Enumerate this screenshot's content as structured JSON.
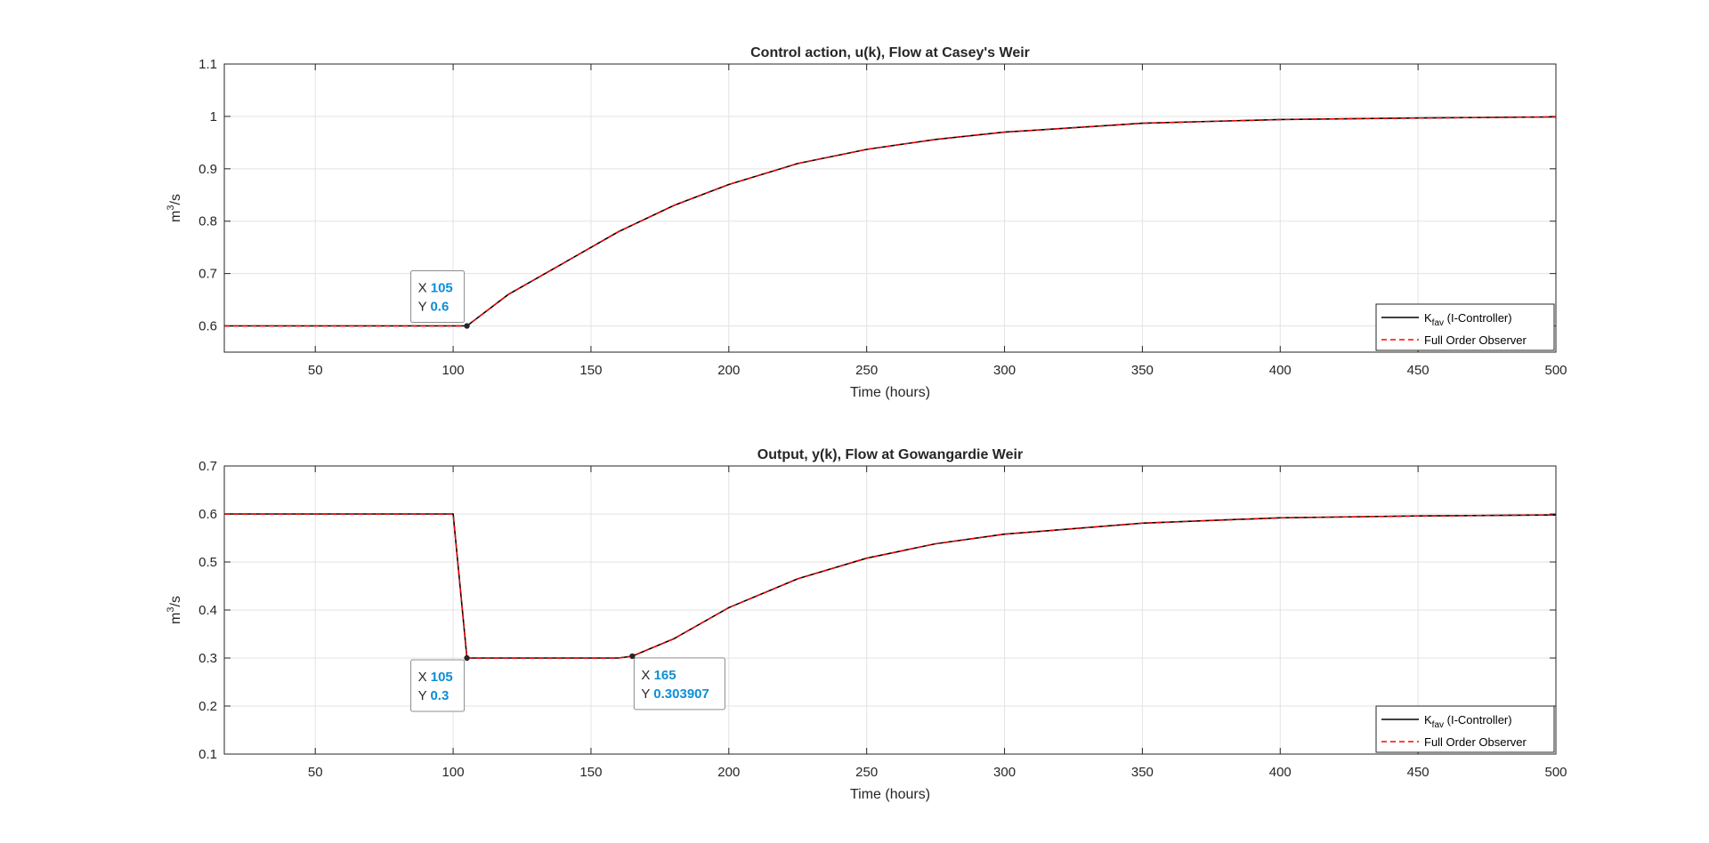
{
  "colors": {
    "series1": "#000000",
    "series2": "#ff0000",
    "grid": "#e3e3e3",
    "axis": "#262626",
    "datatip_value": "#0d8ed8"
  },
  "chart_data": [
    {
      "type": "line",
      "title": "Control action, u(k), Flow at Casey's Weir",
      "xlabel": "Time (hours)",
      "ylabel": {
        "base": "m",
        "sup": "3",
        "rest": "/s"
      },
      "xlim": [
        17,
        500
      ],
      "ylim": [
        0.55,
        1.1
      ],
      "xticks": [
        50,
        100,
        150,
        200,
        250,
        300,
        350,
        400,
        450,
        500
      ],
      "yticks": [
        0.6,
        0.7,
        0.8,
        0.9,
        1,
        1.1
      ],
      "xtick_labels": [
        "50",
        "100",
        "150",
        "200",
        "250",
        "300",
        "350",
        "400",
        "450",
        "500"
      ],
      "ytick_labels": [
        "0.6",
        "0.7",
        "0.8",
        "0.9",
        "1",
        "1.1"
      ],
      "grid": true,
      "legend_position": "bottom-right",
      "series": [
        {
          "name": {
            "base": "K",
            "sub": "fav",
            "rest": " (I-Controller)"
          },
          "style": "solid",
          "x": [
            17,
            105,
            120,
            140,
            160,
            180,
            200,
            225,
            250,
            275,
            300,
            350,
            400,
            450,
            500
          ],
          "y": [
            0.6,
            0.6,
            0.66,
            0.72,
            0.78,
            0.83,
            0.87,
            0.91,
            0.937,
            0.956,
            0.97,
            0.987,
            0.994,
            0.997,
            0.999
          ]
        },
        {
          "name": {
            "base": "Full Order Observer",
            "sub": "",
            "rest": ""
          },
          "style": "dashed",
          "x": [
            17,
            105,
            120,
            140,
            160,
            180,
            200,
            225,
            250,
            275,
            300,
            350,
            400,
            450,
            500
          ],
          "y": [
            0.6,
            0.6,
            0.66,
            0.72,
            0.78,
            0.83,
            0.87,
            0.91,
            0.937,
            0.956,
            0.97,
            0.987,
            0.994,
            0.997,
            0.999
          ]
        }
      ],
      "datatips": [
        {
          "x": 105,
          "y": 0.6,
          "x_label": "X",
          "y_label": "Y",
          "x_text": "105",
          "y_text": "0.6",
          "placement": "above"
        }
      ]
    },
    {
      "type": "line",
      "title": "Output, y(k), Flow at Gowangardie Weir",
      "xlabel": "Time (hours)",
      "ylabel": {
        "base": "m",
        "sup": "3",
        "rest": "/s"
      },
      "xlim": [
        17,
        500
      ],
      "ylim": [
        0.1,
        0.7
      ],
      "xticks": [
        50,
        100,
        150,
        200,
        250,
        300,
        350,
        400,
        450,
        500
      ],
      "yticks": [
        0.1,
        0.2,
        0.3,
        0.4,
        0.5,
        0.6,
        0.7
      ],
      "xtick_labels": [
        "50",
        "100",
        "150",
        "200",
        "250",
        "300",
        "350",
        "400",
        "450",
        "500"
      ],
      "ytick_labels": [
        "0.1",
        "0.2",
        "0.3",
        "0.4",
        "0.5",
        "0.6",
        "0.7"
      ],
      "grid": true,
      "legend_position": "bottom-right",
      "series": [
        {
          "name": {
            "base": "K",
            "sub": "fav",
            "rest": " (I-Controller)"
          },
          "style": "solid",
          "x": [
            17,
            100,
            105,
            160,
            165,
            180,
            200,
            225,
            250,
            275,
            300,
            350,
            400,
            450,
            500
          ],
          "y": [
            0.6,
            0.6,
            0.3,
            0.3,
            0.303907,
            0.34,
            0.405,
            0.465,
            0.508,
            0.538,
            0.558,
            0.581,
            0.592,
            0.596,
            0.598
          ]
        },
        {
          "name": {
            "base": "Full Order Observer",
            "sub": "",
            "rest": ""
          },
          "style": "dashed",
          "x": [
            17,
            100,
            105,
            160,
            165,
            180,
            200,
            225,
            250,
            275,
            300,
            350,
            400,
            450,
            500
          ],
          "y": [
            0.6,
            0.6,
            0.3,
            0.3,
            0.303907,
            0.34,
            0.405,
            0.465,
            0.508,
            0.538,
            0.558,
            0.581,
            0.592,
            0.596,
            0.598
          ]
        }
      ],
      "datatips": [
        {
          "x": 105,
          "y": 0.3,
          "x_label": "X",
          "y_label": "Y",
          "x_text": "105",
          "y_text": "0.3",
          "placement": "below"
        },
        {
          "x": 165,
          "y": 0.303907,
          "x_label": "X",
          "y_label": "Y",
          "x_text": "165",
          "y_text": "0.303907",
          "placement": "below-right"
        }
      ]
    }
  ]
}
